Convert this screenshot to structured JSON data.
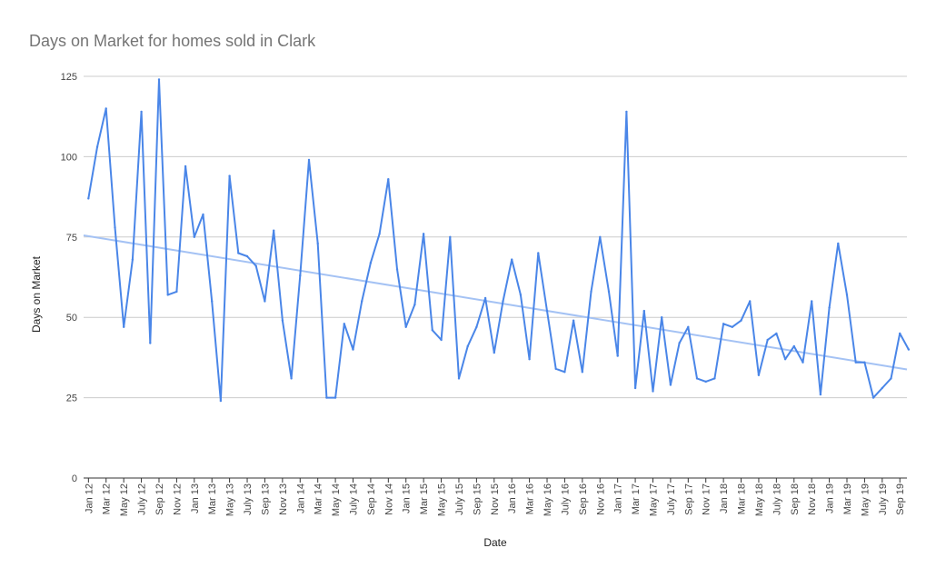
{
  "chart_data": {
    "type": "line",
    "title": "Days on Market for homes sold in Clark",
    "xlabel": "Date",
    "ylabel": "Days on Market",
    "ylim": [
      0,
      125
    ],
    "yticks": [
      0,
      25,
      50,
      75,
      100,
      125
    ],
    "grid": true,
    "legend": "none",
    "colors": {
      "series": "#4a86e8",
      "trendline": "#a4c2f4",
      "grid": "#cccccc"
    },
    "x_tick_labels": [
      "Jan 12",
      "Mar 12",
      "May 12",
      "July 12",
      "Sep 12",
      "Nov 12",
      "Jan 13",
      "Mar 13",
      "May 13",
      "July 13",
      "Sep 13",
      "Nov 13",
      "Jan 14",
      "Mar 14",
      "May 14",
      "July 14",
      "Sep 14",
      "Nov 14",
      "Jan 15",
      "Mar 15",
      "May 15",
      "July 15",
      "Sep 15",
      "Nov 15",
      "Jan 16",
      "Mar 16",
      "May 16",
      "July 16",
      "Sep 16",
      "Nov 16",
      "Jan 17",
      "Mar 17",
      "May 17",
      "July 17",
      "Sep 17",
      "Nov 17",
      "Jan 18",
      "Mar 18",
      "May 18",
      "July 18",
      "Sep 18",
      "Nov 18",
      "Jan 19",
      "Mar 19",
      "May 19",
      "July 19",
      "Sep 19"
    ],
    "x": [
      "2012-01",
      "2012-02",
      "2012-03",
      "2012-04",
      "2012-05",
      "2012-06",
      "2012-07",
      "2012-08",
      "2012-09",
      "2012-10",
      "2012-11",
      "2012-12",
      "2013-01",
      "2013-02",
      "2013-03",
      "2013-04",
      "2013-05",
      "2013-06",
      "2013-07",
      "2013-08",
      "2013-09",
      "2013-10",
      "2013-11",
      "2013-12",
      "2014-01",
      "2014-02",
      "2014-03",
      "2014-04",
      "2014-05",
      "2014-06",
      "2014-07",
      "2014-08",
      "2014-09",
      "2014-10",
      "2014-11",
      "2014-12",
      "2015-01",
      "2015-02",
      "2015-03",
      "2015-04",
      "2015-05",
      "2015-06",
      "2015-07",
      "2015-08",
      "2015-09",
      "2015-10",
      "2015-11",
      "2015-12",
      "2016-01",
      "2016-02",
      "2016-03",
      "2016-04",
      "2016-05",
      "2016-06",
      "2016-07",
      "2016-08",
      "2016-09",
      "2016-10",
      "2016-11",
      "2016-12",
      "2017-01",
      "2017-02",
      "2017-03",
      "2017-04",
      "2017-05",
      "2017-06",
      "2017-07",
      "2017-08",
      "2017-09",
      "2017-10",
      "2017-11",
      "2017-12",
      "2018-01",
      "2018-02",
      "2018-03",
      "2018-04",
      "2018-05",
      "2018-06",
      "2018-07",
      "2018-08",
      "2018-09",
      "2018-10",
      "2018-11",
      "2018-12",
      "2019-01",
      "2019-02",
      "2019-03",
      "2019-04",
      "2019-05",
      "2019-06",
      "2019-07",
      "2019-08",
      "2019-09",
      "2019-10"
    ],
    "series": [
      {
        "values": [
          87,
          103,
          115,
          78,
          47,
          68,
          114,
          42,
          124,
          57,
          58,
          97,
          75,
          82,
          55,
          24,
          94,
          70,
          69,
          66,
          55,
          77,
          49,
          31,
          63,
          99,
          73,
          25,
          25,
          48,
          40,
          55,
          67,
          76,
          93,
          65,
          47,
          54,
          76,
          46,
          43,
          75,
          31,
          41,
          47,
          56,
          39,
          55,
          68,
          57,
          37,
          70,
          52,
          34,
          33,
          49,
          33,
          58,
          75,
          58,
          38,
          114,
          28,
          52,
          27,
          50,
          29,
          42,
          47,
          31,
          30,
          31,
          48,
          47,
          49,
          55,
          32,
          43,
          45,
          37,
          41,
          36,
          55,
          26,
          53,
          73,
          57,
          36,
          36,
          25,
          28,
          31,
          45,
          40
        ]
      }
    ],
    "trendline": {
      "type": "linear",
      "start": 75.5,
      "end": 33.8
    }
  }
}
